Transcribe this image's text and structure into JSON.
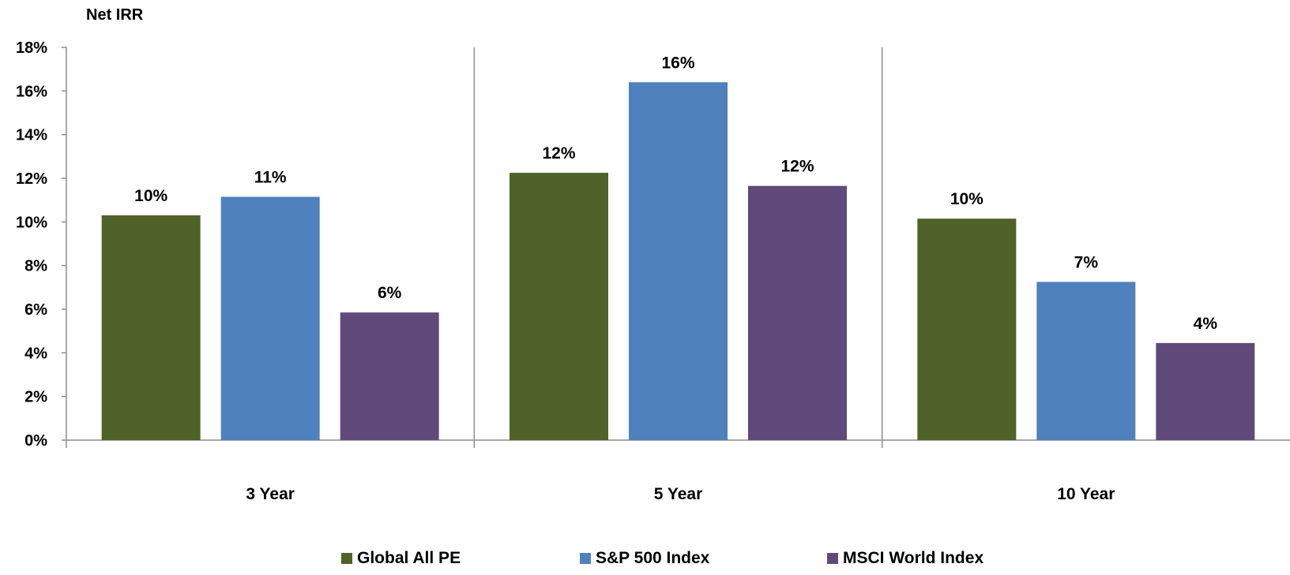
{
  "chart_data": {
    "type": "bar",
    "ylabel": "Net IRR",
    "xlabel": "",
    "ylim": [
      0,
      18
    ],
    "y_ticks": [
      "0%",
      "2%",
      "4%",
      "6%",
      "8%",
      "10%",
      "12%",
      "14%",
      "16%",
      "18%"
    ],
    "categories": [
      "3 Year",
      "5 Year",
      "10 Year"
    ],
    "series": [
      {
        "name": "Global All PE",
        "color": "#4f6228",
        "values": [
          10.3,
          12.25,
          10.15
        ],
        "labels": [
          "10%",
          "12%",
          "10%"
        ]
      },
      {
        "name": "S&P 500 Index",
        "color": "#4f81bd",
        "values": [
          11.15,
          16.4,
          7.25
        ],
        "labels": [
          "11%",
          "16%",
          "7%"
        ]
      },
      {
        "name": "MSCI World Index",
        "color": "#604a7b",
        "values": [
          5.85,
          11.65,
          4.45
        ],
        "labels": [
          "6%",
          "12%",
          "4%"
        ]
      }
    ],
    "grid": false,
    "legend_position": "bottom"
  }
}
